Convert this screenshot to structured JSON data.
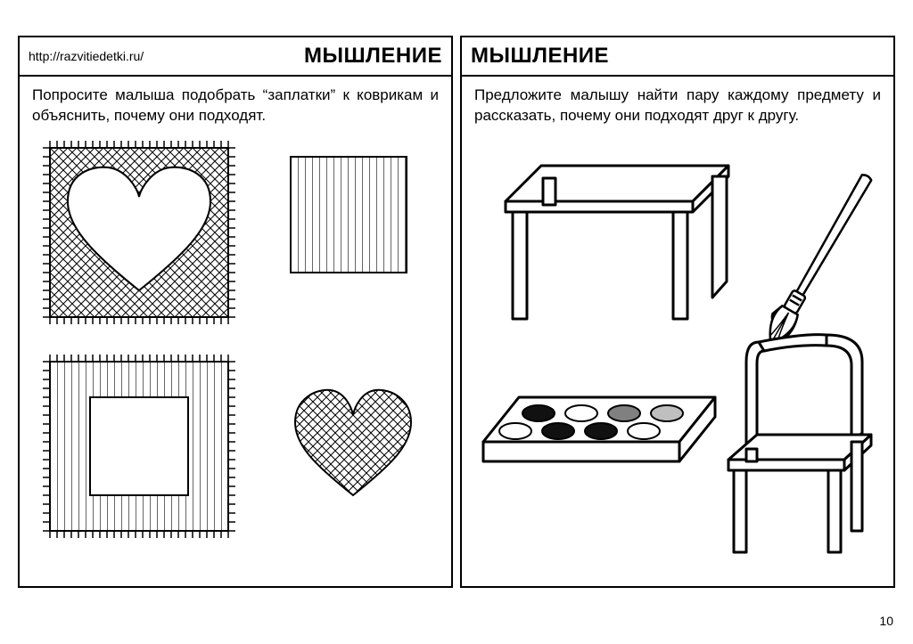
{
  "url": "http://razvitiedetki.ru/",
  "page_number": "10",
  "colors": {
    "stroke": "#000000",
    "background": "#ffffff",
    "paint_dark": "#111111",
    "paint_grey": "#808080",
    "paint_lightgrey": "#bfbfbf"
  },
  "left": {
    "title": "МЫШЛЕНИЕ",
    "instruction": "Попросите малыша подобрать “заплатки” к коврикам и объяснить, почему они подходят.",
    "illustrations": {
      "rug_heart": {
        "type": "crosshatch-rug",
        "cutout": "heart",
        "fringe": true
      },
      "rug_square": {
        "type": "stripes-rug",
        "cutout": "square",
        "fringe": true
      },
      "patch_stripes": {
        "type": "stripes-patch"
      },
      "patch_heart": {
        "type": "crosshatch-heart-patch"
      }
    }
  },
  "right": {
    "title": "МЫШЛЕНИЕ",
    "instruction": "Предложите малышу найти пару каждому предмету и рассказать, почему они подходят друг к другу.",
    "illustrations": {
      "table": {
        "type": "table-outline"
      },
      "brush": {
        "type": "paintbrush-outline"
      },
      "palette": {
        "type": "paint-box",
        "wells": [
          {
            "fill": "#111111"
          },
          {
            "fill": "#ffffff"
          },
          {
            "fill": "#808080"
          },
          {
            "fill": "#bfbfbf"
          },
          {
            "fill": "#ffffff"
          },
          {
            "fill": "#111111"
          },
          {
            "fill": "#111111"
          },
          {
            "fill": "#ffffff"
          }
        ]
      },
      "chair": {
        "type": "chair-outline"
      }
    }
  }
}
